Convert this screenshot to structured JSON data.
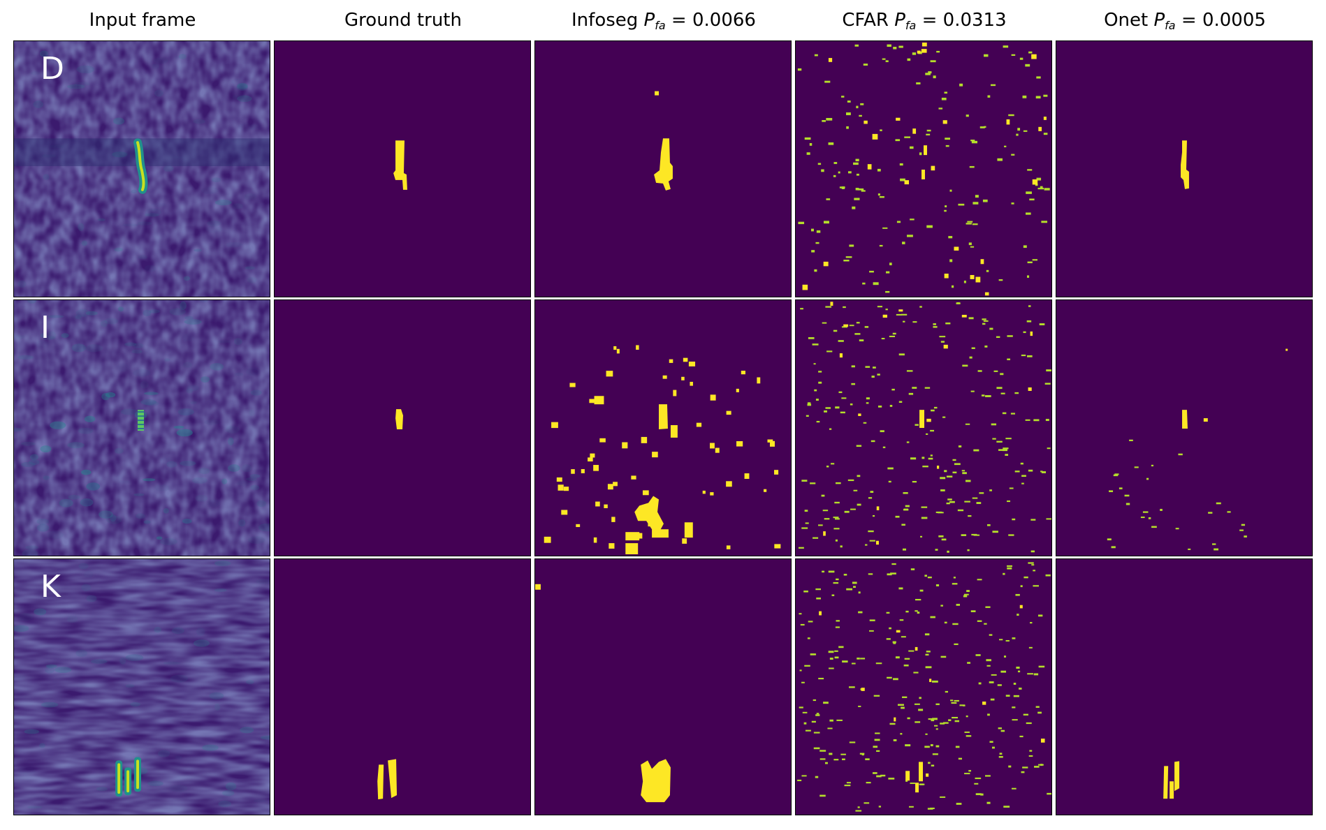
{
  "columns": [
    {
      "id": "input",
      "label": "Input frame",
      "pfa": ""
    },
    {
      "id": "gt",
      "label": "Ground truth",
      "pfa": ""
    },
    {
      "id": "infoseg",
      "label": "Infoseg ",
      "pfa": "0.0066"
    },
    {
      "id": "cfar",
      "label": "CFAR ",
      "pfa": "0.0313"
    },
    {
      "id": "onet",
      "label": "Onet ",
      "pfa": "0.0005"
    }
  ],
  "pfa_symbol": "P",
  "pfa_sub": "fa",
  "rows": [
    {
      "id": "D",
      "letter": "D"
    },
    {
      "id": "I",
      "letter": "I"
    },
    {
      "id": "K",
      "letter": "K"
    }
  ],
  "colors": {
    "background": "#440154",
    "mask": "#fde725",
    "cfar_mark": "#b5de2b",
    "input_mid": "#31688e"
  }
}
